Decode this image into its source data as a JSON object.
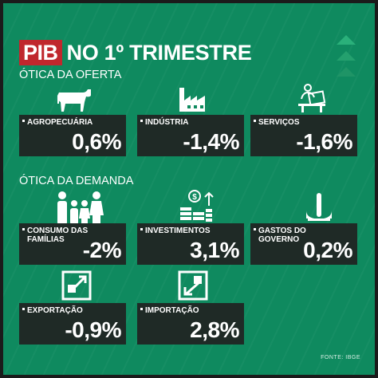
{
  "header": {
    "title_box": "PIB",
    "title_rest": "NO 1º TRIMESTRE"
  },
  "sections": {
    "supply": "ÓTICA DA OFERTA",
    "demand": "ÓTICA DA DEMANDA"
  },
  "chart_data": {
    "type": "table",
    "title": "PIB NO 1º TRIMESTRE",
    "groups": [
      {
        "name": "ÓTICA DA OFERTA",
        "items": [
          {
            "label": "AGROPECUÁRIA",
            "value": "0,6%",
            "icon": "cow-icon"
          },
          {
            "label": "INDÚSTRIA",
            "value": "-1,4%",
            "icon": "factory-icon"
          },
          {
            "label": "SERVIÇOS",
            "value": "-1,6%",
            "icon": "person-desk-icon"
          }
        ]
      },
      {
        "name": "ÓTICA DA DEMANDA",
        "items": [
          {
            "label": "CONSUMO DAS\nFAMÍLIAS",
            "value": "-2%",
            "icon": "family-icon"
          },
          {
            "label": "INVESTIMENTOS",
            "value": "3,1%",
            "icon": "money-growth-icon"
          },
          {
            "label": "GASTOS DO\nGOVERNO",
            "value": "0,2%",
            "icon": "government-icon"
          },
          {
            "label": "EXPORTAÇÃO",
            "value": "-0,9%",
            "icon": "export-icon"
          },
          {
            "label": "IMPORTAÇÃO",
            "value": "2,8%",
            "icon": "import-icon"
          }
        ]
      }
    ]
  },
  "footer": {
    "source": "FONTE: IBGE"
  },
  "colors": {
    "background": "#0f8a5f",
    "card": "#1f2a26",
    "accent": "#c0272d"
  }
}
